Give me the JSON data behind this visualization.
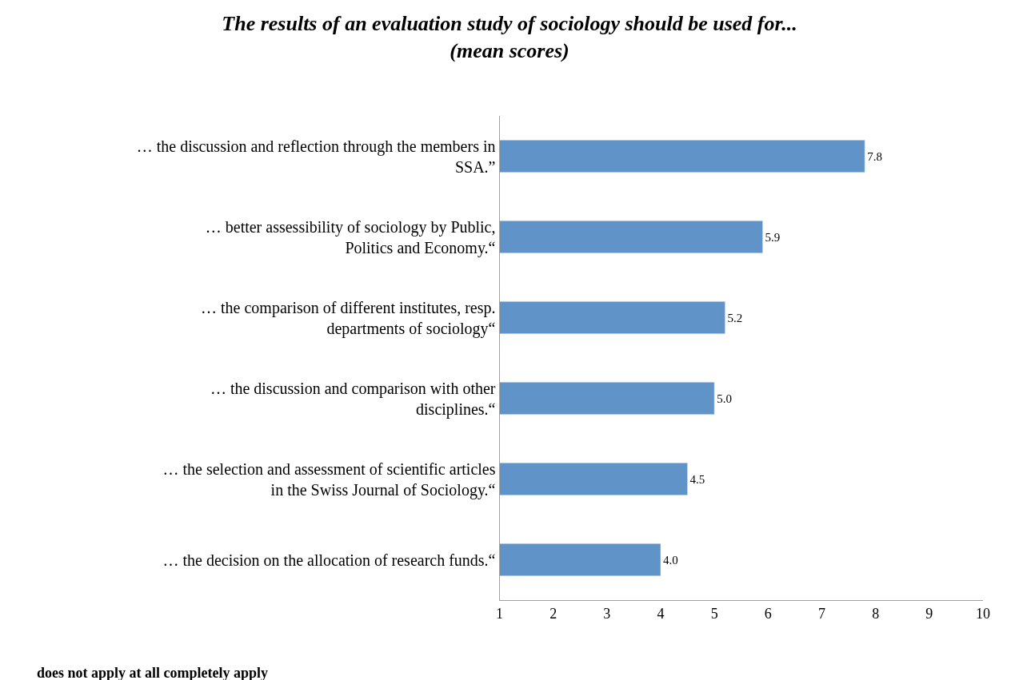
{
  "chart_data": {
    "type": "bar",
    "orientation": "horizontal",
    "title": "The results of an evaluation study of sociology should be used for...\n(mean scores)",
    "categories": [
      "… the discussion and reflection through the members in SSA.”",
      "… better assessibility of sociology by Public, Politics and Economy.“",
      "… the comparison of different institutes, resp. departments of sociology“",
      "… the discussion and comparison with other disciplines.“",
      "… the selection and assessment of scientific articles in the Swiss Journal of Sociology.“",
      "… the decision on the allocation of research funds.“"
    ],
    "values": [
      7.8,
      5.9,
      5.2,
      5.0,
      4.5,
      4.0
    ],
    "value_labels": [
      "7.8",
      "5.9",
      "5.2",
      "5.0",
      "4.5",
      "4.0"
    ],
    "color": "#6094c8",
    "xlim": [
      1,
      10
    ],
    "xticks": [
      1,
      2,
      3,
      4,
      5,
      6,
      7,
      8,
      9,
      10
    ],
    "xlabel": "does not apply at all completely apply"
  }
}
